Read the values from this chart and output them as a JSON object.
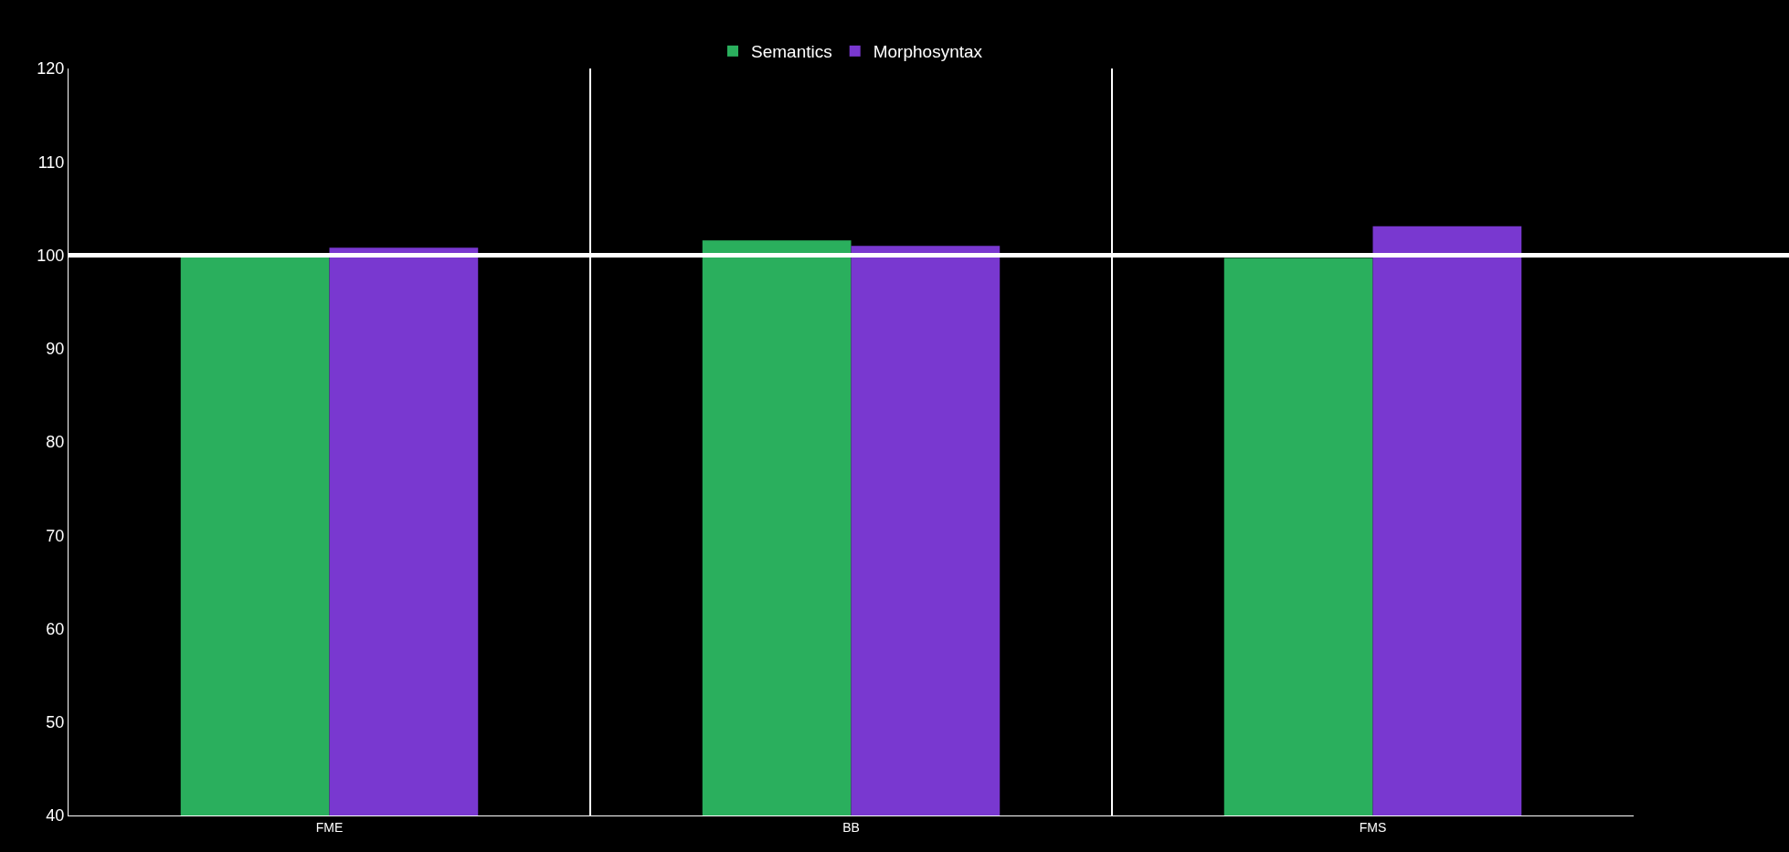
{
  "chart_data": {
    "type": "bar",
    "categories": [
      "FME",
      "BB",
      "FMS"
    ],
    "series": [
      {
        "name": "Semantics",
        "color": "#2aaf5d",
        "values": [
          99.8,
          101.6,
          99.7
        ]
      },
      {
        "name": "Morphosyntax",
        "color": "#7938d0",
        "values": [
          100.8,
          101.0,
          103.1
        ]
      }
    ],
    "ylim": [
      40,
      120
    ],
    "yticks": [
      40,
      50,
      60,
      70,
      80,
      90,
      100,
      110,
      120
    ],
    "grid": "x",
    "legend": "top",
    "ref_lines": [
      {
        "axis": "y",
        "value": 100,
        "color": "#ffffff"
      }
    ]
  }
}
